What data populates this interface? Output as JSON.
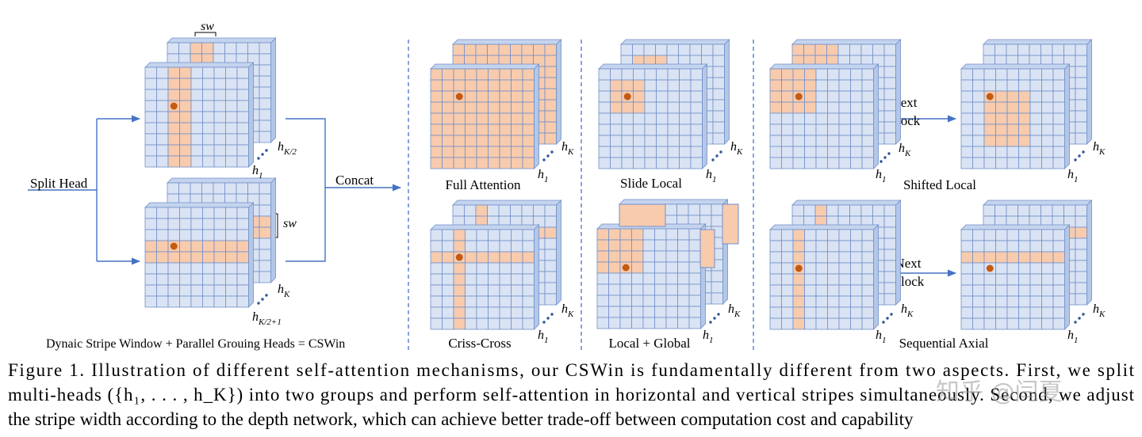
{
  "figure": {
    "split_head": "Split Head",
    "concat": "Concat",
    "sw_top": "sw",
    "sw_side": "sw",
    "left_caption": "Dynaic Stripe Window + Parallel Grouing Heads = CSWin",
    "left_heads": [
      {
        "base": "h",
        "sub": "K/2"
      },
      {
        "base": "h",
        "sub": "1"
      },
      {
        "base": "h",
        "sub": "K"
      },
      {
        "base": "h",
        "sub": "K/2+1"
      }
    ],
    "panels": [
      {
        "label": "Full Attention",
        "heads": [
          {
            "base": "h",
            "sub": "K"
          },
          {
            "base": "h",
            "sub": "1"
          }
        ]
      },
      {
        "label": "Slide Local",
        "heads": [
          {
            "base": "h",
            "sub": "K"
          },
          {
            "base": "h",
            "sub": "1"
          }
        ]
      },
      {
        "label": "Shifted Local",
        "heads": [
          {
            "base": "h",
            "sub": "K"
          },
          {
            "base": "h",
            "sub": "1"
          },
          {
            "base": "h",
            "sub": "K"
          },
          {
            "base": "h",
            "sub": "1"
          }
        ]
      },
      {
        "label": "Criss-Cross",
        "heads": [
          {
            "base": "h",
            "sub": "K"
          },
          {
            "base": "h",
            "sub": "1"
          }
        ]
      },
      {
        "label": "Local + Global",
        "heads": [
          {
            "base": "h",
            "sub": "K"
          },
          {
            "base": "h",
            "sub": "1"
          }
        ]
      },
      {
        "label": "Sequential Axial",
        "heads": [
          {
            "base": "h",
            "sub": "K"
          },
          {
            "base": "h",
            "sub": "1"
          },
          {
            "base": "h",
            "sub": "K"
          },
          {
            "base": "h",
            "sub": "1"
          }
        ]
      }
    ],
    "next_block": [
      [
        "Next",
        "Block"
      ],
      [
        "Next",
        "Block"
      ]
    ],
    "caption": [
      "Figure 1. Illustration of different self-attention mechanisms, our CSWin is fundamentally different from two aspects. First, we split",
      "multi-heads ({h₁, . . . , h_K}) into two groups and perform self-attention in horizontal and vertical stripes simultaneously. Second, we adjust",
      "the stripe width according to the depth network, which can achieve better trade-off between computation cost and capability"
    ],
    "watermark": "知乎 @闫夏"
  }
}
